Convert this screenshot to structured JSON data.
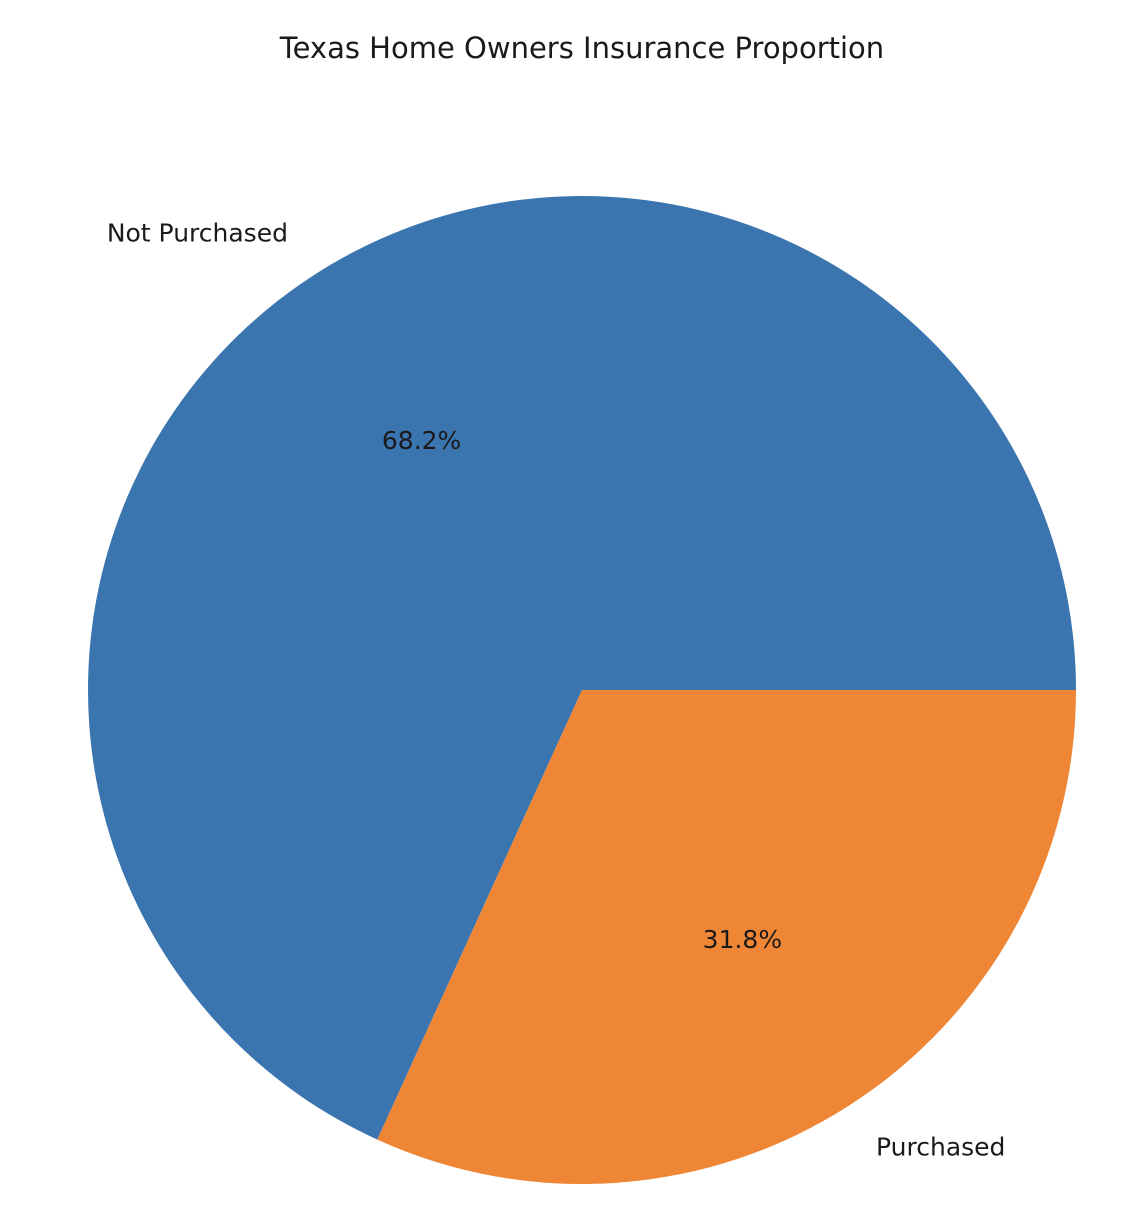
{
  "chart_data": {
    "type": "pie",
    "title": "Texas Home Owners Insurance Proportion",
    "start_angle_deg": 0,
    "direction": "counterclockwise",
    "slices": [
      {
        "label": "Not Purchased",
        "value": 68.2,
        "pct_label": "68.2%",
        "color": "#3b75af"
      },
      {
        "label": "Purchased",
        "value": 31.8,
        "pct_label": "31.8%",
        "color": "#ef8636"
      }
    ]
  }
}
